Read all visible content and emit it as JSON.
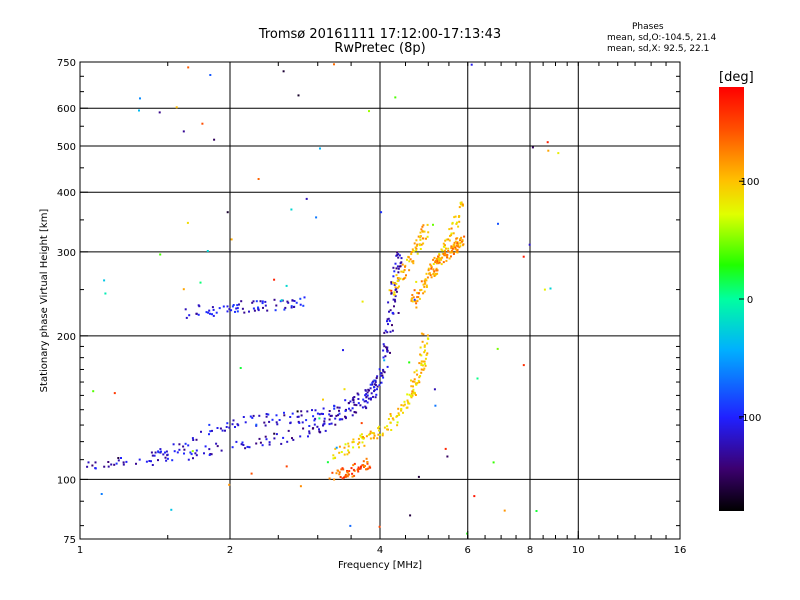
{
  "header": {
    "title_line1": "Tromsø 20161111 17:12:00-17:13:43",
    "title_line2": "RwPretec (8p)"
  },
  "stats": {
    "heading": "Phases",
    "line_o": "mean, sd,O:-104.5, 21.4",
    "line_x": "mean, sd,X:  92.5, 22.1"
  },
  "colorbar": {
    "unit_label": "[deg]",
    "range": [
      -180,
      180
    ],
    "tick_labels": [
      "100",
      "0",
      "-100"
    ],
    "tick_values": [
      100,
      0,
      -100
    ],
    "colormap": "rainbow (black-violet-blue-cyan-green-yellow-orange-red)"
  },
  "chart_data": {
    "type": "scatter",
    "xlabel": "Frequency [MHz]",
    "ylabel": "Stationary phase Virtual Height [km]",
    "x_scale": "log",
    "y_scale": "log",
    "xlim": [
      1,
      16
    ],
    "ylim": [
      75,
      750
    ],
    "x_ticks": [
      1,
      2,
      4,
      6,
      8,
      10,
      16
    ],
    "x_tick_labels": [
      "1",
      "2",
      "4",
      "6",
      "8",
      "10",
      "16"
    ],
    "x_grid": [
      2,
      4,
      6,
      8,
      10
    ],
    "y_ticks": [
      75,
      100,
      200,
      300,
      400,
      500,
      600,
      750
    ],
    "y_tick_labels": [
      "75",
      "100",
      "200",
      "300",
      "400",
      "500",
      "600",
      "750"
    ],
    "y_grid": [
      100,
      200,
      300,
      400,
      500,
      600
    ],
    "grid": true,
    "color_by": "phase [deg]",
    "traces": [
      {
        "x": [
          1.0,
          1.3,
          1.6,
          2.0,
          2.5,
          3.0,
          3.4,
          3.8,
          4.0,
          4.1,
          4.2,
          4.3,
          4.35
        ],
        "y": [
          108,
          110,
          113,
          118,
          122,
          128,
          135,
          148,
          165,
          190,
          230,
          275,
          295
        ],
        "phase": -120
      },
      {
        "x": [
          1.4,
          1.8,
          2.2,
          2.6,
          3.0,
          3.4,
          3.7,
          3.9
        ],
        "y": [
          112,
          128,
          133,
          135,
          137,
          142,
          150,
          160
        ],
        "phase": -115
      },
      {
        "x": [
          1.6,
          1.9,
          2.2,
          2.5,
          2.8
        ],
        "y": [
          225,
          228,
          232,
          234,
          236
        ],
        "phase": -110
      },
      {
        "x": [
          3.2,
          3.5,
          3.8,
          4.1,
          4.4,
          4.6,
          4.75,
          4.85,
          4.9
        ],
        "y": [
          112,
          118,
          124,
          130,
          138,
          150,
          165,
          180,
          200
        ],
        "phase": 95
      },
      {
        "x": [
          3.2,
          3.4,
          3.6,
          3.8
        ],
        "y": [
          102,
          104,
          106,
          110
        ],
        "phase": 140
      },
      {
        "x": [
          4.2,
          4.4,
          4.6,
          4.8,
          4.9
        ],
        "y": [
          250,
          270,
          295,
          320,
          335
        ],
        "phase": 105
      },
      {
        "x": [
          5.0,
          5.3,
          5.6,
          5.8
        ],
        "y": [
          270,
          300,
          340,
          390
        ],
        "phase": 100
      },
      {
        "x": [
          4.6,
          4.8,
          5.0,
          5.2,
          5.4,
          5.6,
          5.7,
          5.8
        ],
        "y": [
          230,
          250,
          270,
          285,
          300,
          305,
          310,
          320
        ],
        "phase": 115
      }
    ]
  }
}
